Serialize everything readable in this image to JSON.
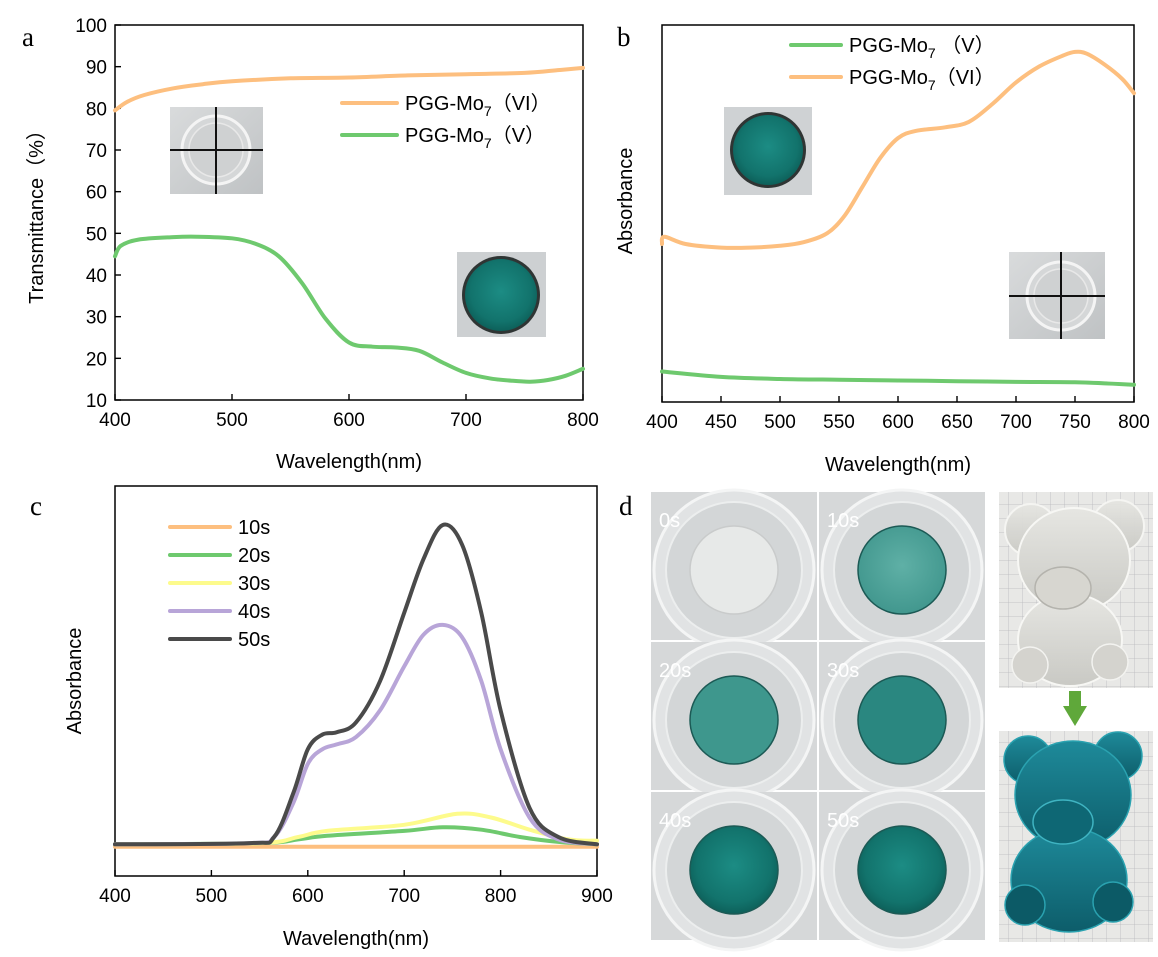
{
  "panels": {
    "a": "a",
    "b": "b",
    "c": "c",
    "d": "d"
  },
  "chart_data": [
    {
      "panel": "a",
      "type": "line",
      "xlabel": "Wavelength(nm)",
      "ylabel": "Transmittance（%）",
      "xlim": [
        400,
        800
      ],
      "ylim": [
        10,
        100
      ],
      "xticks": [
        "400",
        "500",
        "600",
        "700",
        "800"
      ],
      "yticks": [
        "10",
        "20",
        "30",
        "40",
        "50",
        "60",
        "70",
        "80",
        "90",
        "100"
      ],
      "legend_position": "upper-right",
      "series": [
        {
          "name": "PGG-Mo",
          "sub": "7",
          "suffix": "（VI）",
          "color": "#fdbf7f",
          "x": [
            400,
            410,
            425,
            450,
            475,
            500,
            550,
            600,
            650,
            700,
            750,
            780,
            800
          ],
          "y": [
            79.5,
            81.5,
            83.2,
            84.8,
            85.8,
            86.5,
            87.2,
            87.4,
            87.9,
            88.2,
            88.5,
            89.2,
            89.7
          ]
        },
        {
          "name": "PGG-Mo",
          "sub": "7",
          "suffix": "（V）",
          "color": "#6ec96e",
          "x": [
            400,
            405,
            420,
            450,
            470,
            500,
            520,
            540,
            560,
            580,
            600,
            620,
            640,
            660,
            680,
            700,
            720,
            740,
            755,
            770,
            785,
            800
          ],
          "y": [
            44.5,
            47,
            48.5,
            49.1,
            49.2,
            48.8,
            47.5,
            44.5,
            38,
            29.5,
            23.8,
            22.8,
            22.6,
            21.8,
            19,
            16.5,
            15.2,
            14.6,
            14.4,
            14.8,
            15.8,
            17.5
          ]
        }
      ],
      "insets": [
        "clear disc photo",
        "blue disc photo"
      ]
    },
    {
      "panel": "b",
      "type": "line",
      "xlabel": "Wavelength(nm)",
      "ylabel": "Absorbance",
      "xlim": [
        400,
        800
      ],
      "xticks": [
        "400",
        "450",
        "500",
        "550",
        "600",
        "650",
        "700",
        "750",
        "800"
      ],
      "legend_position": "top",
      "y_units": "relative (no tick labels)",
      "series": [
        {
          "name": "PGG-Mo",
          "sub": "7",
          "suffix": " （V）",
          "color": "#6ec96e",
          "x": [
            400,
            450,
            500,
            550,
            600,
            650,
            700,
            750,
            800
          ],
          "y": [
            0.085,
            0.07,
            0.064,
            0.062,
            0.06,
            0.058,
            0.056,
            0.055,
            0.048
          ]
        },
        {
          "name": "PGG-Mo",
          "sub": "7",
          "suffix": "（VI）",
          "color": "#fdbf7f",
          "x": [
            400,
            402,
            420,
            450,
            475,
            500,
            520,
            540,
            555,
            570,
            585,
            600,
            615,
            640,
            660,
            680,
            700,
            720,
            740,
            750,
            760,
            775,
            790,
            800
          ],
          "y": [
            0.44,
            0.46,
            0.44,
            0.43,
            0.43,
            0.435,
            0.445,
            0.47,
            0.52,
            0.6,
            0.68,
            0.735,
            0.755,
            0.765,
            0.78,
            0.83,
            0.89,
            0.935,
            0.965,
            0.975,
            0.97,
            0.94,
            0.9,
            0.86
          ]
        }
      ],
      "insets": [
        "blue disc photo",
        "clear disc photo"
      ]
    },
    {
      "panel": "c",
      "type": "line",
      "xlabel": "Wavelength(nm)",
      "ylabel": "Absorbance",
      "xlim": [
        400,
        900
      ],
      "xticks": [
        "400",
        "500",
        "600",
        "700",
        "800",
        "900"
      ],
      "legend_position": "top-left",
      "y_units": "relative (no tick labels)",
      "series": [
        {
          "name": "10s",
          "color": "#fdbf7f",
          "x": [
            400,
            900
          ],
          "y": [
            0.02,
            0.02
          ]
        },
        {
          "name": "20s",
          "color": "#6ec96e",
          "x": [
            400,
            550,
            590,
            620,
            700,
            740,
            780,
            820,
            860,
            900
          ],
          "y": [
            0.03,
            0.035,
            0.05,
            0.065,
            0.085,
            0.1,
            0.09,
            0.06,
            0.04,
            0.03
          ]
        },
        {
          "name": "30s",
          "color": "#fdfb8c",
          "x": [
            400,
            550,
            590,
            620,
            700,
            755,
            790,
            830,
            870,
            900
          ],
          "y": [
            0.03,
            0.035,
            0.06,
            0.085,
            0.11,
            0.155,
            0.14,
            0.09,
            0.05,
            0.045
          ]
        },
        {
          "name": "40s",
          "color": "#b8a5d8",
          "x": [
            400,
            540,
            565,
            585,
            600,
            615,
            630,
            650,
            675,
            700,
            720,
            740,
            760,
            780,
            800,
            830,
            860,
            900
          ],
          "y": [
            0.03,
            0.035,
            0.06,
            0.2,
            0.36,
            0.42,
            0.44,
            0.47,
            0.58,
            0.76,
            0.89,
            0.93,
            0.88,
            0.7,
            0.42,
            0.14,
            0.05,
            0.03
          ]
        },
        {
          "name": "50s",
          "color": "#4a4a4a",
          "x": [
            400,
            540,
            565,
            585,
            600,
            615,
            630,
            650,
            675,
            700,
            720,
            740,
            760,
            780,
            800,
            830,
            860,
            900
          ],
          "y": [
            0.03,
            0.035,
            0.06,
            0.24,
            0.42,
            0.48,
            0.49,
            0.53,
            0.7,
            0.98,
            1.2,
            1.34,
            1.26,
            0.98,
            0.58,
            0.18,
            0.06,
            0.03
          ]
        }
      ]
    }
  ],
  "photo_grid": {
    "labels": [
      "0s",
      "10s",
      "20s",
      "30s",
      "40s",
      "50s"
    ]
  },
  "colors": {
    "orange": "#fdbf7f",
    "green": "#6ec96e",
    "yellow": "#fdfb8c",
    "purple": "#b8a5d8",
    "dark": "#4a4a4a",
    "teal": "#0f6e68",
    "arrow": "#5fa83a"
  }
}
